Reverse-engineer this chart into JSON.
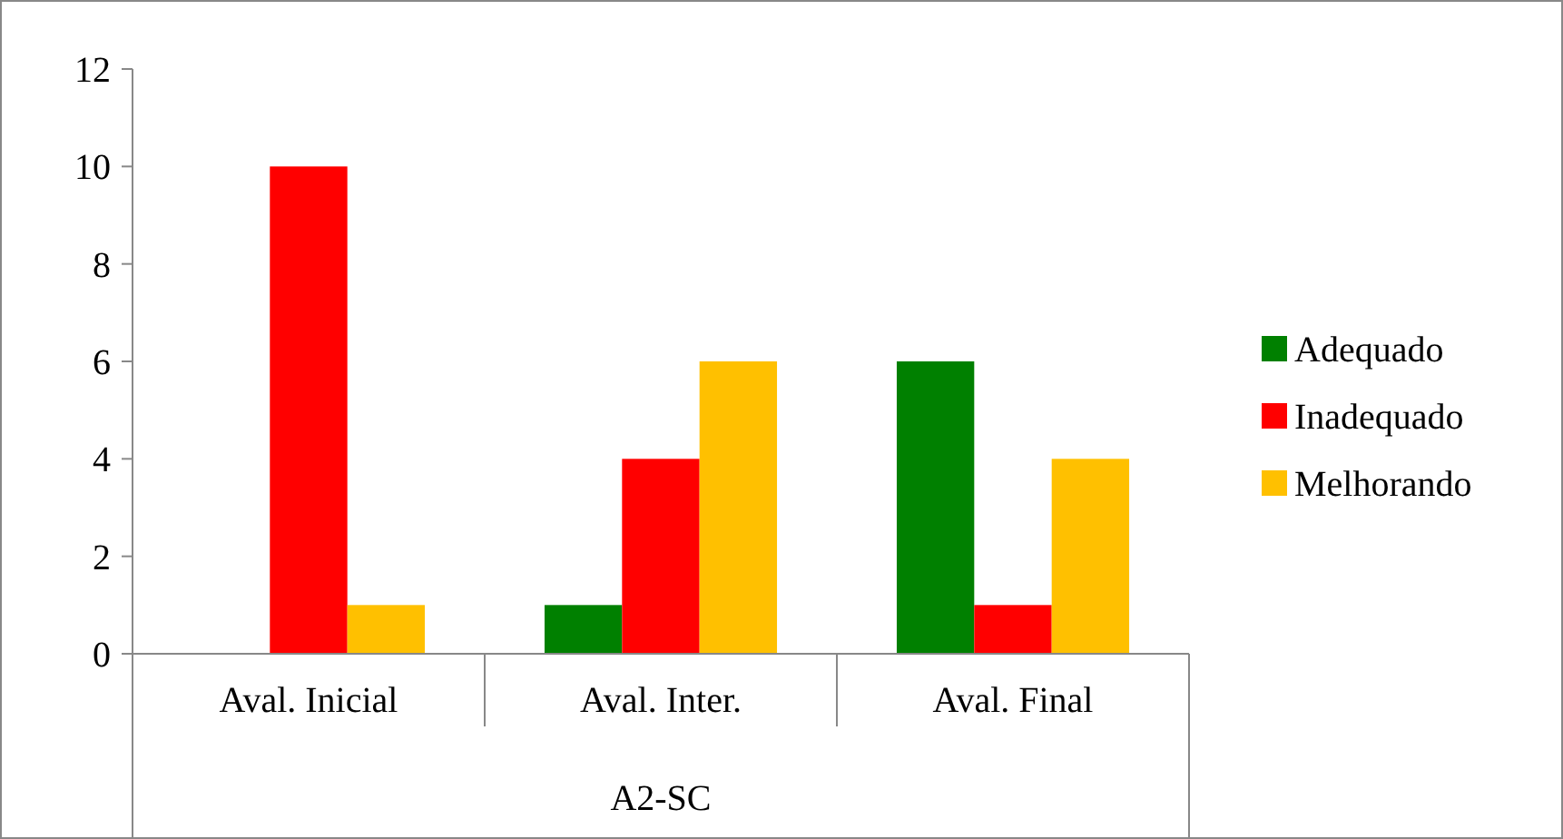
{
  "chart_data": {
    "type": "bar",
    "categories": [
      "Aval. Inicial",
      "Aval. Inter.",
      "Aval. Final"
    ],
    "xlabel": "A2-SC",
    "series": [
      {
        "name": "Adequado",
        "color": "#008000",
        "values": [
          0,
          1,
          6
        ]
      },
      {
        "name": "Inadequado",
        "color": "#ff0000",
        "values": [
          10,
          4,
          1
        ]
      },
      {
        "name": "Melhorando",
        "color": "#ffc000",
        "values": [
          1,
          6,
          4
        ]
      }
    ],
    "ylim": [
      0,
      12
    ],
    "yticks": [
      0,
      2,
      4,
      6,
      8,
      10,
      12
    ],
    "grid": false,
    "legend": "right"
  }
}
